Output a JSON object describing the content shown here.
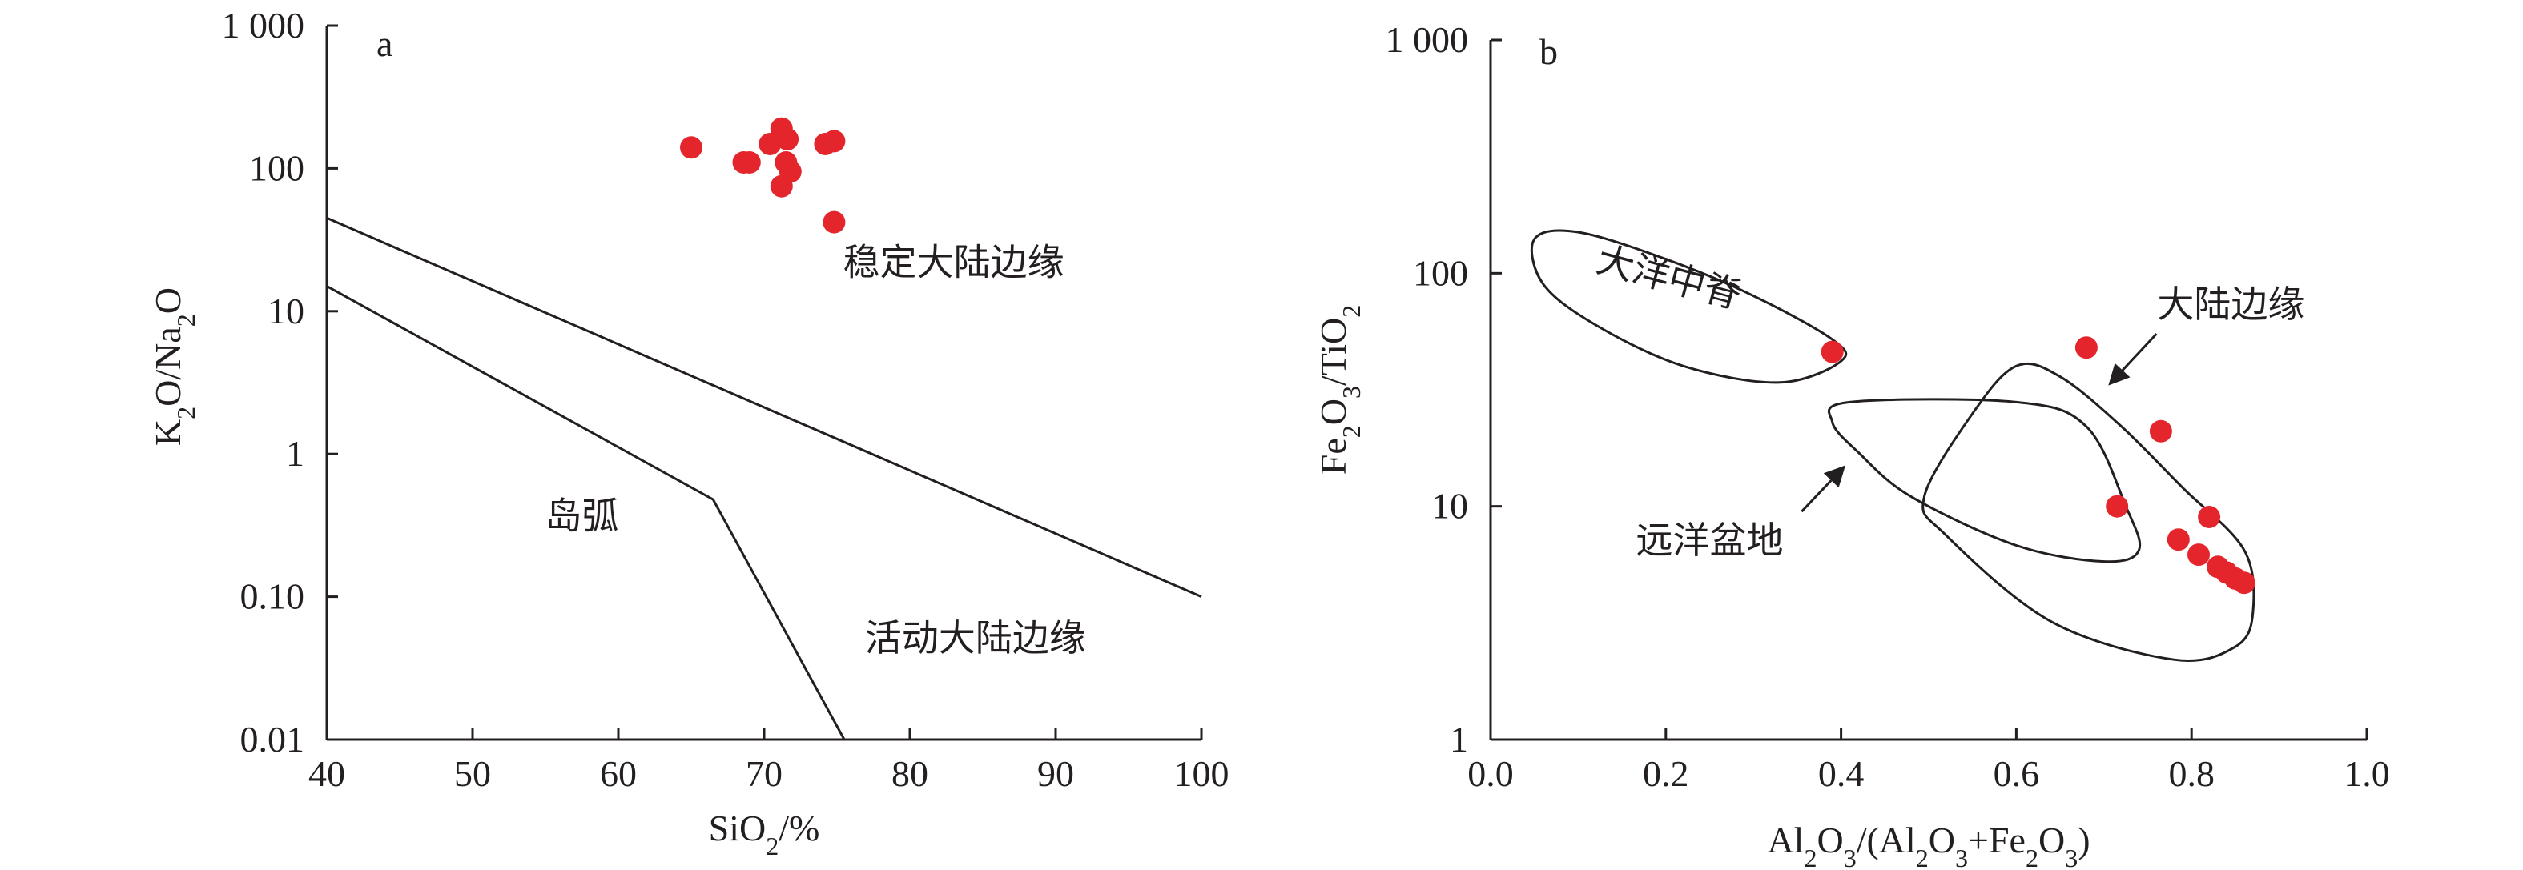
{
  "chart_data": [
    {
      "type": "scatter",
      "panel_label": "a",
      "x_scale": "linear",
      "y_scale": "log",
      "xlim": [
        40,
        100
      ],
      "ylim": [
        0.01,
        1000
      ],
      "xlabel": {
        "base": "SiO",
        "sub": "2",
        "rest": "/%"
      },
      "ylabel": {
        "parts": [
          [
            "K",
            false
          ],
          [
            "2",
            true
          ],
          [
            "O/Na",
            false
          ],
          [
            "2",
            true
          ],
          [
            "O",
            false
          ]
        ]
      },
      "x_ticks": [
        40,
        50,
        60,
        70,
        80,
        90,
        100
      ],
      "x_tick_labels": [
        "40",
        "50",
        "60",
        "70",
        "80",
        "90",
        "100"
      ],
      "y_ticks": [
        0.01,
        0.1,
        1,
        10,
        100,
        1000
      ],
      "y_tick_labels": [
        "0.01",
        "0.10",
        "1",
        "10",
        "100",
        "1 000"
      ],
      "points": [
        [
          65,
          140
        ],
        [
          68.6,
          110
        ],
        [
          69,
          110
        ],
        [
          70.4,
          148
        ],
        [
          71.2,
          190
        ],
        [
          71.6,
          160
        ],
        [
          71.5,
          110
        ],
        [
          71.8,
          95
        ],
        [
          71.2,
          75
        ],
        [
          74.2,
          148
        ],
        [
          74.8,
          155
        ],
        [
          74.8,
          42
        ]
      ],
      "boundaries": [
        [
          [
            40,
            45
          ],
          [
            100,
            0.1
          ]
        ],
        [
          [
            40,
            15
          ],
          [
            66.5,
            0.48
          ],
          [
            75.5,
            0.01
          ]
        ]
      ],
      "region_labels": [
        {
          "text": "稳定大陆边缘",
          "x": 83,
          "y": 18
        },
        {
          "text": "岛弧",
          "x": 57.5,
          "y": 0.3
        },
        {
          "text": "活动大陆边缘",
          "x": 84.5,
          "y": 0.042
        }
      ]
    },
    {
      "type": "scatter",
      "panel_label": "b",
      "x_scale": "linear",
      "y_scale": "log",
      "xlim": [
        0.0,
        1.0
      ],
      "ylim": [
        1,
        1000
      ],
      "xlabel": {
        "parts": [
          [
            "Al",
            false
          ],
          [
            "2",
            true
          ],
          [
            "O",
            false
          ],
          [
            "3",
            true
          ],
          [
            "/(Al",
            false
          ],
          [
            "2",
            true
          ],
          [
            "O",
            false
          ],
          [
            "3",
            true
          ],
          [
            "+Fe",
            false
          ],
          [
            "2",
            true
          ],
          [
            "O",
            false
          ],
          [
            "3",
            true
          ],
          [
            ")",
            false
          ]
        ]
      },
      "ylabel": {
        "parts": [
          [
            "Fe",
            false
          ],
          [
            "2",
            true
          ],
          [
            "O",
            false
          ],
          [
            "3",
            true
          ],
          [
            "/TiO",
            false
          ],
          [
            "2",
            true
          ]
        ]
      },
      "x_ticks": [
        0.0,
        0.2,
        0.4,
        0.6,
        0.8,
        1.0
      ],
      "x_tick_labels": [
        "0.0",
        "0.2",
        "0.4",
        "0.6",
        "0.8",
        "1.0"
      ],
      "y_ticks": [
        1,
        10,
        100,
        1000
      ],
      "y_tick_labels": [
        "1",
        "10",
        "100",
        "1 000"
      ],
      "points": [
        [
          0.39,
          46
        ],
        [
          0.68,
          48
        ],
        [
          0.765,
          21
        ],
        [
          0.715,
          10
        ],
        [
          0.82,
          9
        ],
        [
          0.785,
          7.2
        ],
        [
          0.808,
          6.2
        ],
        [
          0.83,
          5.5
        ],
        [
          0.84,
          5.2
        ],
        [
          0.85,
          4.9
        ],
        [
          0.86,
          4.7
        ]
      ],
      "regions": [
        {
          "name": "大洋中脊",
          "outline": [
            [
              0.05,
              140
            ],
            [
              0.1,
              150
            ],
            [
              0.2,
              115
            ],
            [
              0.3,
              80
            ],
            [
              0.39,
              52
            ],
            [
              0.4,
              42
            ],
            [
              0.33,
              34
            ],
            [
              0.22,
              40
            ],
            [
              0.12,
              60
            ],
            [
              0.06,
              90
            ],
            [
              0.05,
              140
            ]
          ]
        },
        {
          "name": "远洋盆地",
          "outline": [
            [
              0.41,
              28
            ],
            [
              0.6,
              28
            ],
            [
              0.68,
              22
            ],
            [
              0.725,
              10
            ],
            [
              0.74,
              6.5
            ],
            [
              0.7,
              5.8
            ],
            [
              0.6,
              6.8
            ],
            [
              0.48,
              11
            ],
            [
              0.42,
              17
            ],
            [
              0.39,
              23
            ],
            [
              0.41,
              28
            ]
          ]
        },
        {
          "name": "大陆边缘",
          "outline": [
            [
              0.6,
              40
            ],
            [
              0.65,
              36
            ],
            [
              0.72,
              22
            ],
            [
              0.79,
              12
            ],
            [
              0.86,
              6.5
            ],
            [
              0.87,
              3.5
            ],
            [
              0.85,
              2.5
            ],
            [
              0.78,
              2.2
            ],
            [
              0.64,
              3.2
            ],
            [
              0.52,
              7.5
            ],
            [
              0.495,
              11
            ],
            [
              0.55,
              25
            ],
            [
              0.6,
              40
            ]
          ]
        }
      ],
      "region_labels": [
        {
          "text": "大洋中脊",
          "x": 0.2,
          "y": 85,
          "rotate": 15
        },
        {
          "text": "远洋盆地",
          "x": 0.25,
          "y": 6.3
        },
        {
          "text": "大陆边缘",
          "x": 0.845,
          "y": 65
        }
      ],
      "arrows": [
        {
          "for": "大陆边缘",
          "from": [
            0.76,
            55
          ],
          "to": [
            0.705,
            33
          ]
        },
        {
          "for": "远洋盆地",
          "from": [
            0.355,
            9.5
          ],
          "to": [
            0.405,
            15
          ]
        }
      ]
    }
  ]
}
